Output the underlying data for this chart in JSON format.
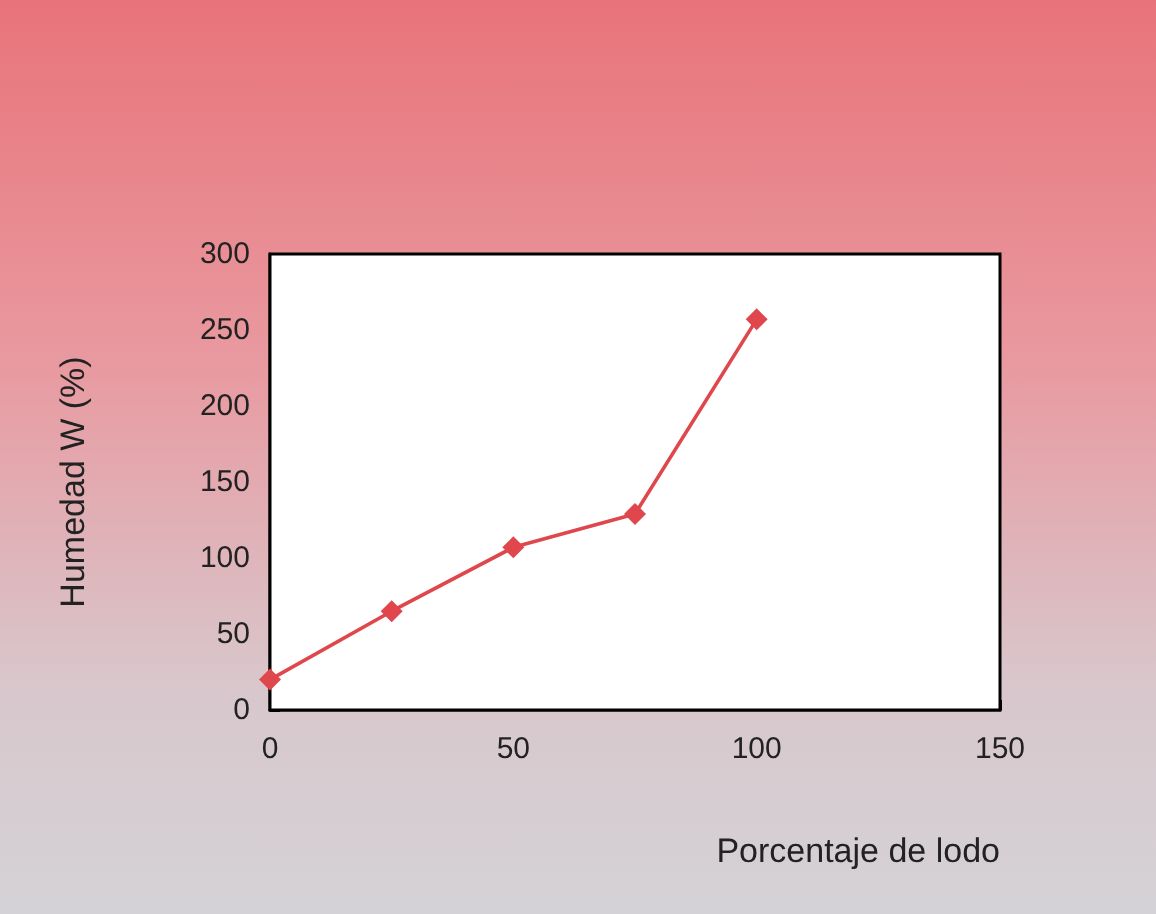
{
  "chart_data": {
    "type": "line",
    "xlabel": "Porcentaje de lodo",
    "ylabel": "Humedad W (%)",
    "x": [
      0,
      25,
      50,
      75,
      100
    ],
    "series": [
      {
        "color": "#e0474c",
        "values": [
          20,
          65,
          107,
          129,
          257
        ]
      }
    ],
    "xlim": [
      0,
      150
    ],
    "xticks": [
      0,
      50,
      100,
      150
    ],
    "ylim": [
      0,
      300
    ],
    "yticks": [
      0,
      50,
      100,
      150,
      200,
      250,
      300
    ],
    "grid": false,
    "marker": "diamond",
    "line_style": "solid"
  }
}
